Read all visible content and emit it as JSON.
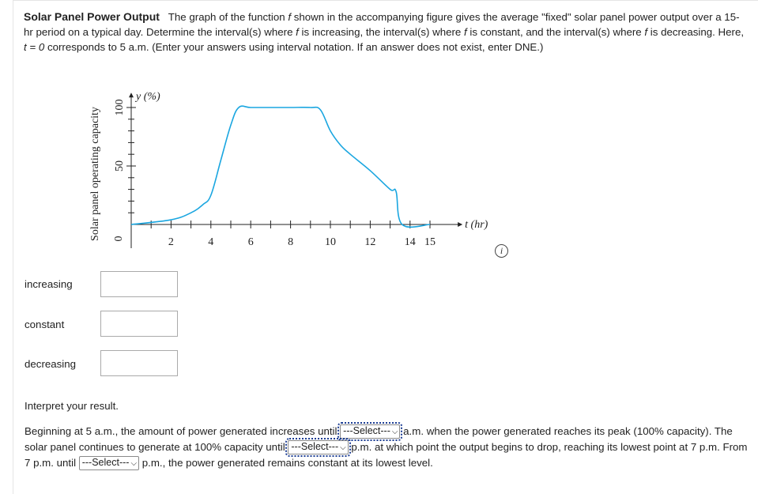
{
  "problem": {
    "title": "Solar Panel Power Output",
    "text_1": "The graph of the function ",
    "f": "f",
    "text_2": " shown in the accompanying figure gives the average \"fixed\" solar panel power output over a 15-hr period on a typical day. Determine the interval(s) where ",
    "text_3": " is increasing, the interval(s) where ",
    "text_4": " is constant, and the interval(s) where ",
    "text_5": " is decreasing. Here, ",
    "t_eq": "t = 0",
    "text_6": " corresponds to 5 a.m. (Enter your answers using interval notation. If an answer does not exist, enter DNE.)"
  },
  "chart_data": {
    "type": "line",
    "ylabel": "Solar panel operating capacity",
    "y_axis_unit": "y (%)",
    "x_axis_unit": "t (hr)",
    "x_ticks": [
      "2",
      "4",
      "6",
      "8",
      "10",
      "12",
      "14",
      "15"
    ],
    "y_ticks": [
      "50",
      "100"
    ],
    "origin_label": "0",
    "xlim": [
      0,
      15.8
    ],
    "ylim": [
      0,
      112
    ],
    "line_color": "#1aa6e0",
    "series": [
      {
        "x": [
          0,
          2,
          3,
          3.6,
          4,
          4.5,
          5,
          5.4,
          6,
          7,
          8,
          9,
          9.5,
          10,
          10.5,
          11,
          12,
          13,
          13.3,
          13.6,
          15
        ],
        "y": [
          0,
          4,
          10,
          17,
          25,
          55,
          85,
          100,
          100,
          100,
          100,
          100,
          98,
          80,
          68,
          60,
          46,
          30,
          28,
          0,
          0
        ]
      }
    ]
  },
  "answers": {
    "increasing_label": "increasing",
    "constant_label": "constant",
    "decreasing_label": "decreasing",
    "increasing_value": "",
    "constant_value": "",
    "decreasing_value": ""
  },
  "info_icon": "info-icon",
  "interpret": {
    "heading": "Interpret your result.",
    "s1": "Beginning at 5 a.m., the amount of power generated increases until ",
    "s2": " a.m. when the power generated reaches its peak (100% capacity). The solar panel continues to generate at 100% capacity until ",
    "s3": " p.m. at which point the output begins to drop, reaching its lowest point at 7 p.m. From 7 p.m. until ",
    "s4": " p.m., the power generated remains constant at its lowest level.",
    "select_1": "---Select---",
    "select_2": "---Select---",
    "select_3": "---Select---"
  }
}
